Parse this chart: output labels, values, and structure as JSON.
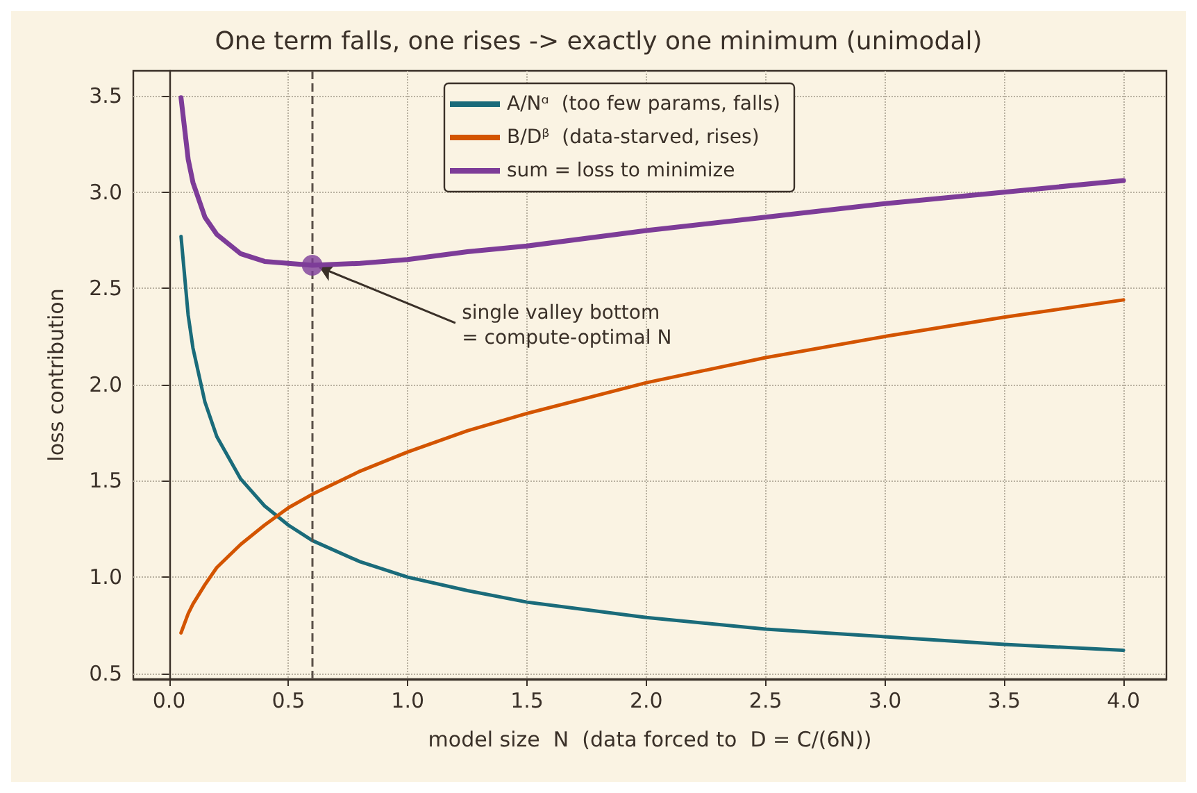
{
  "chart_data": {
    "type": "line",
    "title": "One term falls, one rises -> exactly one minimum (unimodal)",
    "xlabel": "model size  N  (data forced to  D = C/(6N))",
    "ylabel": "loss contribution",
    "x": [
      0.05,
      0.08,
      0.1,
      0.15,
      0.2,
      0.3,
      0.4,
      0.5,
      0.6,
      0.8,
      1.0,
      1.25,
      1.5,
      2.0,
      2.5,
      3.0,
      3.5,
      4.0
    ],
    "series": [
      {
        "name": "A/Nᵅ  (too few params, falls)",
        "color": "#1a6b7a",
        "values": [
          2.77,
          2.36,
          2.19,
          1.91,
          1.73,
          1.51,
          1.37,
          1.27,
          1.19,
          1.08,
          1.0,
          0.93,
          0.87,
          0.79,
          0.73,
          0.69,
          0.65,
          0.62
        ]
      },
      {
        "name": "B/Dᵝ  (data-starved, rises)",
        "color": "#d35400",
        "values": [
          0.71,
          0.81,
          0.86,
          0.96,
          1.05,
          1.17,
          1.27,
          1.36,
          1.43,
          1.55,
          1.65,
          1.76,
          1.85,
          2.01,
          2.14,
          2.25,
          2.35,
          2.44
        ]
      },
      {
        "name": "sum = loss to minimize",
        "color": "#7d3c98",
        "values": [
          3.49,
          3.17,
          3.05,
          2.87,
          2.78,
          2.68,
          2.64,
          2.63,
          2.62,
          2.63,
          2.65,
          2.69,
          2.72,
          2.8,
          2.87,
          2.94,
          3.0,
          3.06
        ]
      },
      {
        "type": "scatter",
        "color": "#7d3c98",
        "x": [
          0.6
        ],
        "values": [
          2.62
        ],
        "marker": "circle"
      }
    ],
    "annotations": [
      {
        "text": "single valley bottom\n= compute-optimal N",
        "x": 0.6,
        "y": 2.62
      }
    ],
    "ref_lines": [
      {
        "axis": "x",
        "value": 0.6,
        "color": "#5a5048",
        "line_style": "dashed"
      }
    ],
    "xlim": [
      -0.15,
      4.18
    ],
    "ylim": [
      0.47,
      3.63
    ],
    "xticks": [
      {
        "value": 0,
        "label": "0.0"
      },
      0.5,
      {
        "value": 1,
        "label": "1.0"
      },
      1.5,
      {
        "value": 2,
        "label": "2.0"
      },
      2.5,
      {
        "value": 3,
        "label": "3.0"
      },
      3.5,
      {
        "value": 4,
        "label": "4.0"
      }
    ],
    "yticks": [
      0.5,
      {
        "value": 1,
        "label": "1.0"
      },
      1.5,
      {
        "value": 2,
        "label": "2.0"
      },
      2.5,
      {
        "value": 3,
        "label": "3.0"
      },
      3.5
    ],
    "grid": true,
    "legend": "top",
    "marker": "none",
    "line_style": "solid"
  }
}
